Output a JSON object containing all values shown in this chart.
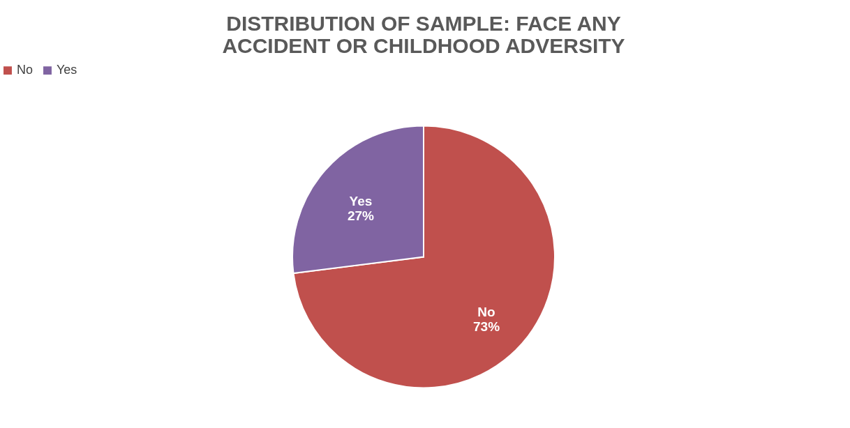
{
  "chart_data": {
    "type": "pie",
    "title": "DISTRIBUTION OF SAMPLE: FACE ANY ACCIDENT OR CHILDHOOD ADVERSITY",
    "categories": [
      "No",
      "Yes"
    ],
    "values": [
      73,
      27
    ],
    "colors": [
      "#c0504d",
      "#8064a2"
    ],
    "value_labels": [
      "73%",
      "27%"
    ],
    "legend": "top"
  }
}
